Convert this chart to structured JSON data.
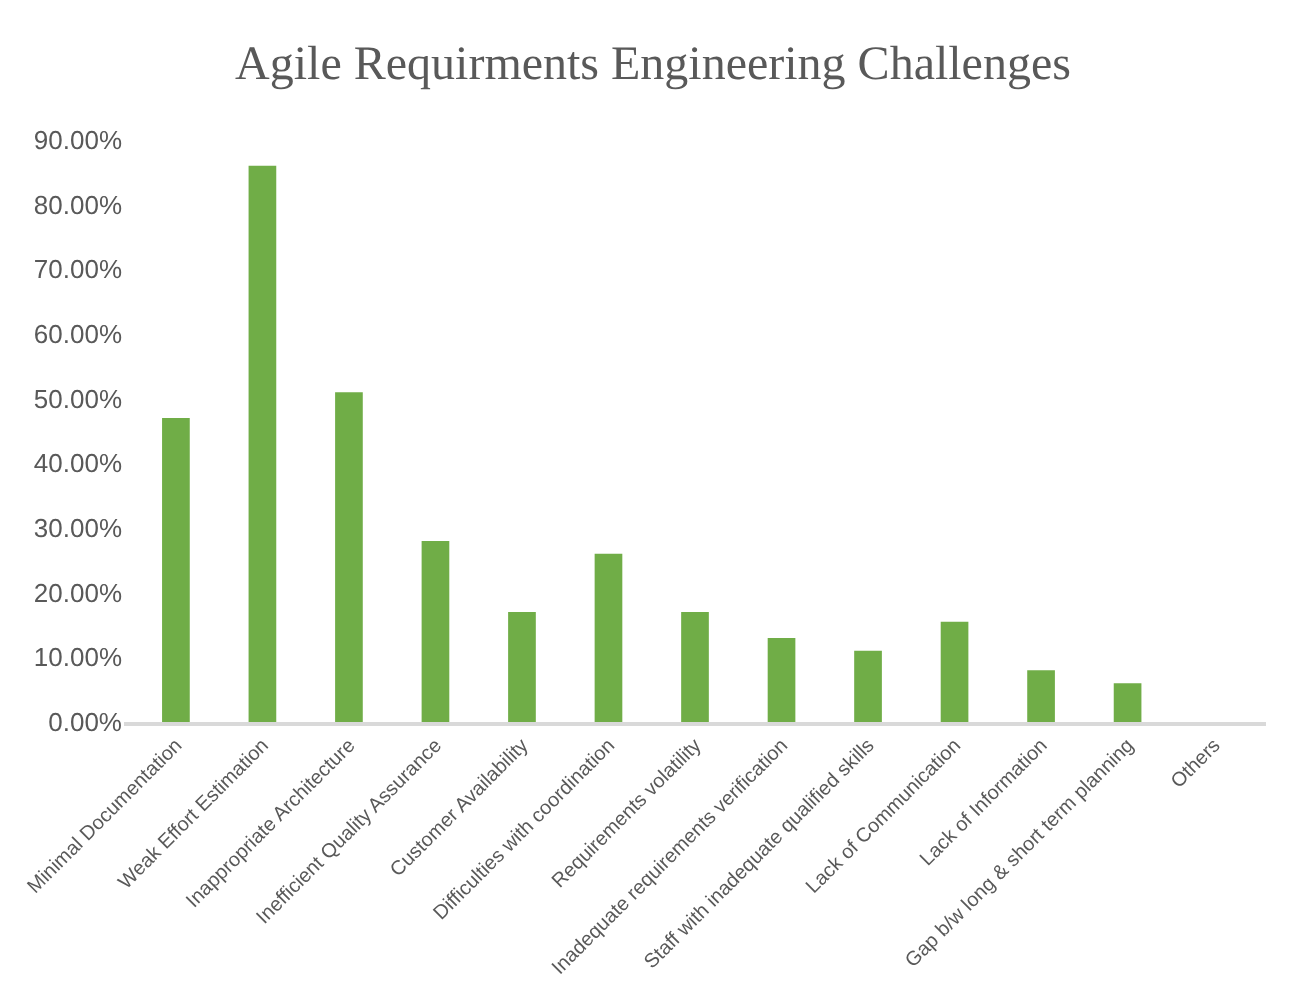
{
  "chart_data": {
    "type": "bar",
    "title": "Agile Requirments Engineering Challenges",
    "categories": [
      "Minimal Documentation",
      "Weak Effort Estimation",
      "Inappropriate Architecture",
      "Inefficient Quality Assurance",
      "Customer Availability",
      "Difficulties with coordination",
      "Requirements volatility",
      "Inadequate requirements verification",
      "Staff with inadequate qualified skills",
      "Lack of Communication",
      "Lack of Information",
      "Gap b/w long & short term planning",
      "Others"
    ],
    "values": [
      47,
      86,
      51,
      28,
      17,
      26,
      17,
      13,
      11,
      15.5,
      8,
      6,
      0
    ],
    "color": "#70ad47",
    "ylim": [
      0,
      90
    ],
    "yticks": [
      {
        "value": 0,
        "label": "0.00%"
      },
      {
        "value": 10,
        "label": "10.00%"
      },
      {
        "value": 20,
        "label": "20.00%"
      },
      {
        "value": 30,
        "label": "30.00%"
      },
      {
        "value": 40,
        "label": "40.00%"
      },
      {
        "value": 50,
        "label": "50.00%"
      },
      {
        "value": 60,
        "label": "60.00%"
      },
      {
        "value": 70,
        "label": "70.00%"
      },
      {
        "value": 80,
        "label": "80.00%"
      },
      {
        "value": 90,
        "label": "90.00%"
      }
    ]
  }
}
